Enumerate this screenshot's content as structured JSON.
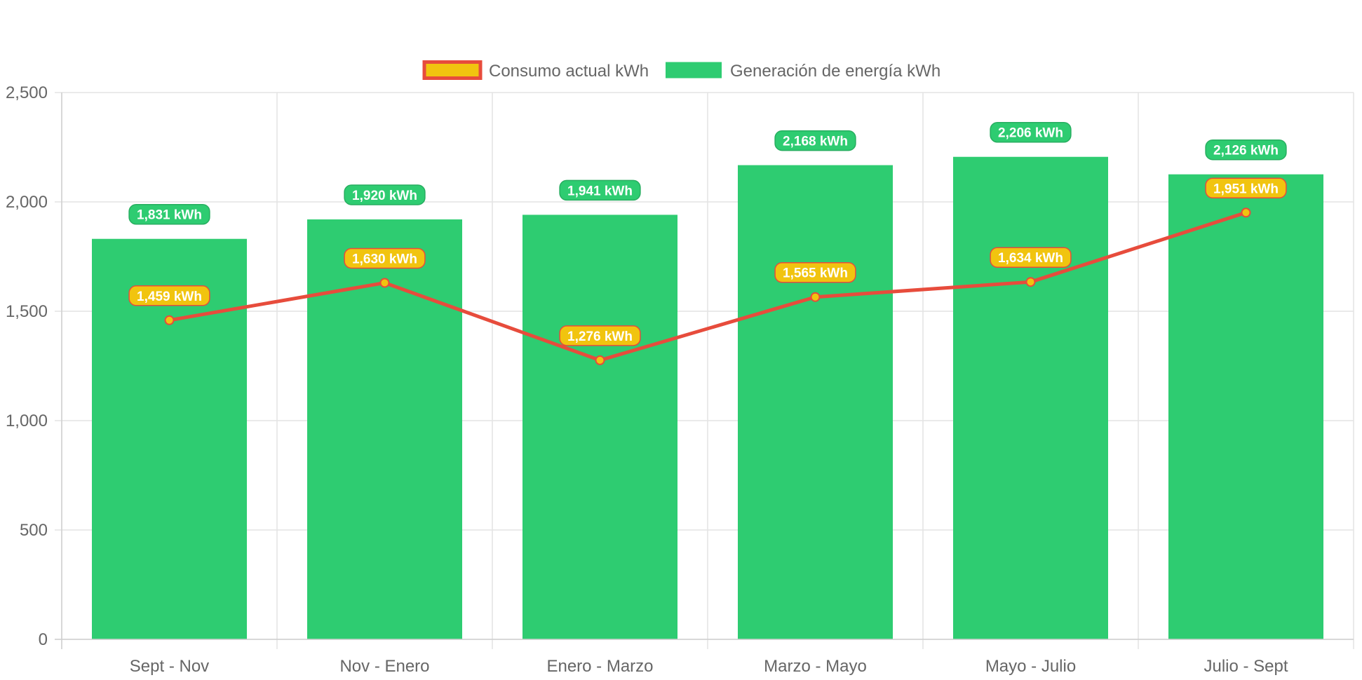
{
  "colors": {
    "bar": "#2ecc71",
    "bar_label_border": "#27ae60",
    "line": "#e74c3c",
    "point_fill": "#f1c40f",
    "grid": "#e3e3e3",
    "axis_text": "#666666"
  },
  "legend": {
    "items": [
      {
        "label": "Consumo actual kWh",
        "swatch_fill": "#f1c40f",
        "swatch_border": "#e74c3c"
      },
      {
        "label": "Generación de energía kWh",
        "swatch_fill": "#2ecc71",
        "swatch_border": "#2ecc71"
      }
    ]
  },
  "chart_data": {
    "type": "bar",
    "categories": [
      "Sept - Nov",
      "Nov - Enero",
      "Enero - Marzo",
      "Marzo - Mayo",
      "Mayo - Julio",
      "Julio - Sept"
    ],
    "series": [
      {
        "name": "Generación de energía kWh",
        "type": "bar",
        "values": [
          1831,
          1920,
          1941,
          2168,
          2206,
          2126
        ],
        "labels": [
          "1,831 kWh",
          "1,920 kWh",
          "1,941 kWh",
          "2,168 kWh",
          "2,206 kWh",
          "2,126 kWh"
        ]
      },
      {
        "name": "Consumo actual kWh",
        "type": "line",
        "values": [
          1459,
          1630,
          1276,
          1565,
          1634,
          1951
        ],
        "labels": [
          "1,459 kWh",
          "1,630 kWh",
          "1,276 kWh",
          "1,565 kWh",
          "1,634 kWh",
          "1,951 kWh"
        ]
      }
    ],
    "ylim": [
      0,
      2500
    ],
    "yticks": [
      0,
      500,
      1000,
      1500,
      2000,
      2500
    ],
    "ytick_labels": [
      "0",
      "500",
      "1,000",
      "1,500",
      "2,000",
      "2,500"
    ],
    "grid": true,
    "legend_position": "top",
    "title": "",
    "xlabel": "",
    "ylabel": ""
  }
}
